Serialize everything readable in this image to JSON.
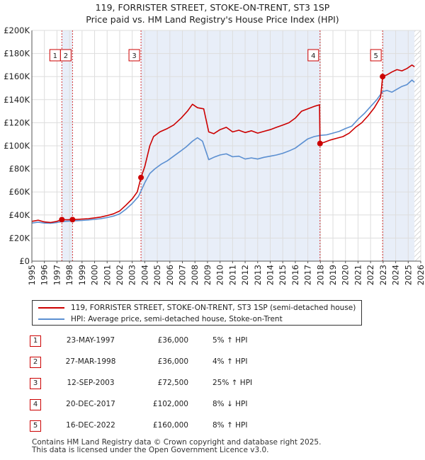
{
  "title": {
    "line1": "119, FORRISTER STREET, STOKE-ON-TRENT, ST3 1SP",
    "line2": "Price paid vs. HM Land Registry's House Price Index (HPI)"
  },
  "colors": {
    "property": "#cc0000",
    "hpi": "#5b8fd1",
    "shade": "#e8eef8",
    "grid": "#dddddd",
    "marker_line": "#cc0000"
  },
  "chart_data": {
    "type": "line",
    "xlim": [
      1995,
      2026
    ],
    "ylim": [
      0,
      200000
    ],
    "x_ticks": [
      "1995",
      "1996",
      "1997",
      "1998",
      "1999",
      "2000",
      "2001",
      "2002",
      "2003",
      "2004",
      "2005",
      "2006",
      "2007",
      "2008",
      "2009",
      "2010",
      "2011",
      "2012",
      "2013",
      "2014",
      "2015",
      "2016",
      "2017",
      "2018",
      "2019",
      "2020",
      "2021",
      "2022",
      "2023",
      "2024",
      "2025",
      "2026"
    ],
    "y_ticks": [
      {
        "value": 0,
        "label": "£0"
      },
      {
        "value": 20000,
        "label": "£20K"
      },
      {
        "value": 40000,
        "label": "£40K"
      },
      {
        "value": 60000,
        "label": "£60K"
      },
      {
        "value": 80000,
        "label": "£80K"
      },
      {
        "value": 100000,
        "label": "£100K"
      },
      {
        "value": 120000,
        "label": "£120K"
      },
      {
        "value": 140000,
        "label": "£140K"
      },
      {
        "value": 160000,
        "label": "£160K"
      },
      {
        "value": 180000,
        "label": "£180K"
      },
      {
        "value": 200000,
        "label": "£200K"
      }
    ],
    "shaded_ranges": [
      [
        1997.39,
        1998.24
      ],
      [
        2003.7,
        2017.97
      ],
      [
        2022.96,
        2025.5
      ]
    ],
    "hatched_from": 2025.5,
    "series": [
      {
        "name": "119, FORRISTER STREET, STOKE-ON-TRENT, ST3 1SP (semi-detached house)",
        "color": "#cc0000",
        "points": [
          [
            1995,
            34500
          ],
          [
            1995.5,
            35500
          ],
          [
            1996,
            34000
          ],
          [
            1996.5,
            33500
          ],
          [
            1997,
            34500
          ],
          [
            1997.39,
            36000
          ],
          [
            1997.8,
            35800
          ],
          [
            1998.24,
            36000
          ],
          [
            1998.8,
            36300
          ],
          [
            1999.5,
            36800
          ],
          [
            2000,
            37500
          ],
          [
            2000.5,
            38200
          ],
          [
            2001,
            39500
          ],
          [
            2001.5,
            41000
          ],
          [
            2002,
            43500
          ],
          [
            2002.5,
            48500
          ],
          [
            2003,
            54000
          ],
          [
            2003.4,
            60000
          ],
          [
            2003.7,
            72500
          ],
          [
            2004,
            82000
          ],
          [
            2004.4,
            100000
          ],
          [
            2004.7,
            108000
          ],
          [
            2005.2,
            112000
          ],
          [
            2005.8,
            115000
          ],
          [
            2006.3,
            118000
          ],
          [
            2006.9,
            124000
          ],
          [
            2007.4,
            130000
          ],
          [
            2007.8,
            136000
          ],
          [
            2008.2,
            133000
          ],
          [
            2008.7,
            132000
          ],
          [
            2009.1,
            112000
          ],
          [
            2009.5,
            110500
          ],
          [
            2010,
            114000
          ],
          [
            2010.5,
            116000
          ],
          [
            2011,
            112000
          ],
          [
            2011.5,
            113500
          ],
          [
            2012,
            111500
          ],
          [
            2012.5,
            113000
          ],
          [
            2013,
            111000
          ],
          [
            2013.5,
            112500
          ],
          [
            2014,
            114000
          ],
          [
            2014.5,
            116000
          ],
          [
            2015,
            118000
          ],
          [
            2015.5,
            120000
          ],
          [
            2016,
            124000
          ],
          [
            2016.5,
            130000
          ],
          [
            2017,
            132000
          ],
          [
            2017.6,
            134500
          ],
          [
            2017.93,
            135500
          ],
          [
            2017.97,
            102000
          ],
          [
            2018.3,
            103000
          ],
          [
            2018.8,
            105000
          ],
          [
            2019.3,
            106500
          ],
          [
            2019.8,
            108000
          ],
          [
            2020.3,
            111000
          ],
          [
            2020.8,
            116000
          ],
          [
            2021.3,
            120000
          ],
          [
            2021.8,
            126000
          ],
          [
            2022.3,
            133000
          ],
          [
            2022.8,
            142000
          ],
          [
            2022.96,
            160000
          ],
          [
            2023.3,
            161500
          ],
          [
            2023.7,
            164000
          ],
          [
            2024.1,
            166000
          ],
          [
            2024.5,
            165000
          ],
          [
            2024.9,
            167000
          ],
          [
            2025.3,
            170000
          ],
          [
            2025.5,
            168500
          ]
        ]
      },
      {
        "name": "HPI: Average price, semi-detached house, Stoke-on-Trent",
        "color": "#5b8fd1",
        "points": [
          [
            1995,
            33000
          ],
          [
            1995.5,
            33800
          ],
          [
            1996,
            33000
          ],
          [
            1996.5,
            32800
          ],
          [
            1997,
            33500
          ],
          [
            1997.39,
            34300
          ],
          [
            1998,
            34700
          ],
          [
            1998.5,
            35000
          ],
          [
            1999,
            35300
          ],
          [
            1999.5,
            35700
          ],
          [
            2000,
            36200
          ],
          [
            2000.5,
            36800
          ],
          [
            2001,
            37800
          ],
          [
            2001.5,
            39000
          ],
          [
            2002,
            41000
          ],
          [
            2002.5,
            45000
          ],
          [
            2003,
            50000
          ],
          [
            2003.5,
            56000
          ],
          [
            2004,
            68000
          ],
          [
            2004.4,
            76000
          ],
          [
            2004.8,
            80000
          ],
          [
            2005.3,
            84000
          ],
          [
            2005.8,
            87000
          ],
          [
            2006.3,
            91000
          ],
          [
            2006.8,
            95000
          ],
          [
            2007.3,
            99000
          ],
          [
            2007.8,
            104000
          ],
          [
            2008.2,
            107000
          ],
          [
            2008.6,
            104000
          ],
          [
            2009.1,
            88000
          ],
          [
            2009.5,
            90000
          ],
          [
            2010,
            92000
          ],
          [
            2010.5,
            93000
          ],
          [
            2011,
            90500
          ],
          [
            2011.5,
            91000
          ],
          [
            2012,
            88500
          ],
          [
            2012.5,
            89500
          ],
          [
            2013,
            88500
          ],
          [
            2013.5,
            90000
          ],
          [
            2014,
            91000
          ],
          [
            2014.5,
            92000
          ],
          [
            2015,
            93500
          ],
          [
            2015.5,
            95500
          ],
          [
            2016,
            98000
          ],
          [
            2016.5,
            102000
          ],
          [
            2017,
            106000
          ],
          [
            2017.5,
            108000
          ],
          [
            2017.97,
            109000
          ],
          [
            2018.5,
            109500
          ],
          [
            2019,
            111000
          ],
          [
            2019.5,
            112500
          ],
          [
            2020,
            115000
          ],
          [
            2020.5,
            117000
          ],
          [
            2021,
            123000
          ],
          [
            2021.5,
            128000
          ],
          [
            2022,
            134000
          ],
          [
            2022.5,
            140000
          ],
          [
            2022.96,
            147000
          ],
          [
            2023.3,
            148000
          ],
          [
            2023.7,
            146500
          ],
          [
            2024.1,
            149000
          ],
          [
            2024.5,
            151500
          ],
          [
            2024.9,
            153000
          ],
          [
            2025.3,
            157000
          ],
          [
            2025.5,
            155000
          ]
        ]
      }
    ],
    "sales": [
      {
        "id": "1",
        "t": 1997.39,
        "price": 36000
      },
      {
        "id": "2",
        "t": 1998.24,
        "price": 36000
      },
      {
        "id": "3",
        "t": 2003.7,
        "price": 72500
      },
      {
        "id": "4",
        "t": 2017.97,
        "price": 102000
      },
      {
        "id": "5",
        "t": 2022.96,
        "price": 160000
      }
    ]
  },
  "legend": {
    "property_label": "119, FORRISTER STREET, STOKE-ON-TRENT, ST3 1SP (semi-detached house)",
    "hpi_label": "HPI: Average price, semi-detached house, Stoke-on-Trent"
  },
  "sales_table": [
    {
      "id": "1",
      "date": "23-MAY-1997",
      "price": "£36,000",
      "hpi": "5% ↑ HPI"
    },
    {
      "id": "2",
      "date": "27-MAR-1998",
      "price": "£36,000",
      "hpi": "4% ↑ HPI"
    },
    {
      "id": "3",
      "date": "12-SEP-2003",
      "price": "£72,500",
      "hpi": "25% ↑ HPI"
    },
    {
      "id": "4",
      "date": "20-DEC-2017",
      "price": "£102,000",
      "hpi": "8% ↓ HPI"
    },
    {
      "id": "5",
      "date": "16-DEC-2022",
      "price": "£160,000",
      "hpi": "8% ↑ HPI"
    }
  ],
  "footnote": {
    "line1": "Contains HM Land Registry data © Crown copyright and database right 2025.",
    "line2": "This data is licensed under the Open Government Licence v3.0."
  }
}
